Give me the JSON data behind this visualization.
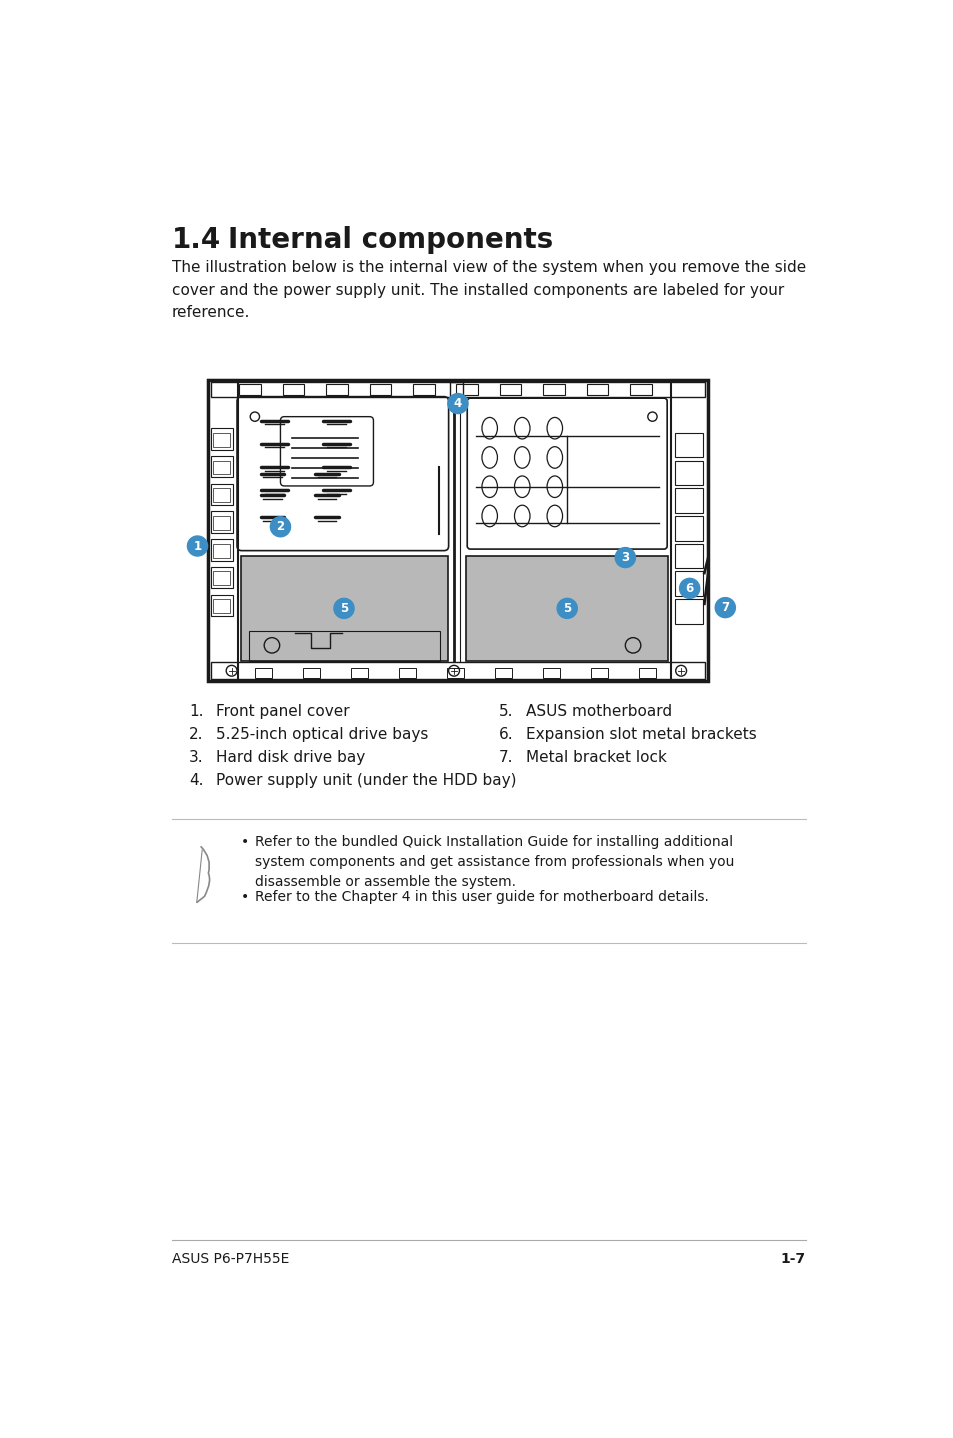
{
  "title_num": "1.4",
  "title_text": "Internal components",
  "subtitle": "The illustration below is the internal view of the system when you remove the side\ncover and the power supply unit. The installed components are labeled for your\nreference.",
  "items_left": [
    [
      "1.",
      "Front panel cover"
    ],
    [
      "2.",
      "5.25-inch optical drive bays"
    ],
    [
      "3.",
      "Hard disk drive bay"
    ],
    [
      "4.",
      "Power supply unit (under the HDD bay)"
    ]
  ],
  "items_right": [
    [
      "5.",
      "ASUS motherboard"
    ],
    [
      "6.",
      "Expansion slot metal brackets"
    ],
    [
      "7.",
      "Metal bracket lock"
    ]
  ],
  "note_bullets": [
    "Refer to the bundled Quick Installation Guide for installing additional\nsystem components and get assistance from professionals when you\ndisassemble or assemble the system.",
    "Refer to the Chapter 4 in this user guide for motherboard details."
  ],
  "footer_left": "ASUS P6-P7H55E",
  "footer_right": "1-7",
  "badge_color": "#3d8ec4",
  "badge_text_color": "#ffffff",
  "bg_color": "#ffffff",
  "text_color": "#000000",
  "gray_fill": "#b8b8b8",
  "lc": "#1a1a1a"
}
